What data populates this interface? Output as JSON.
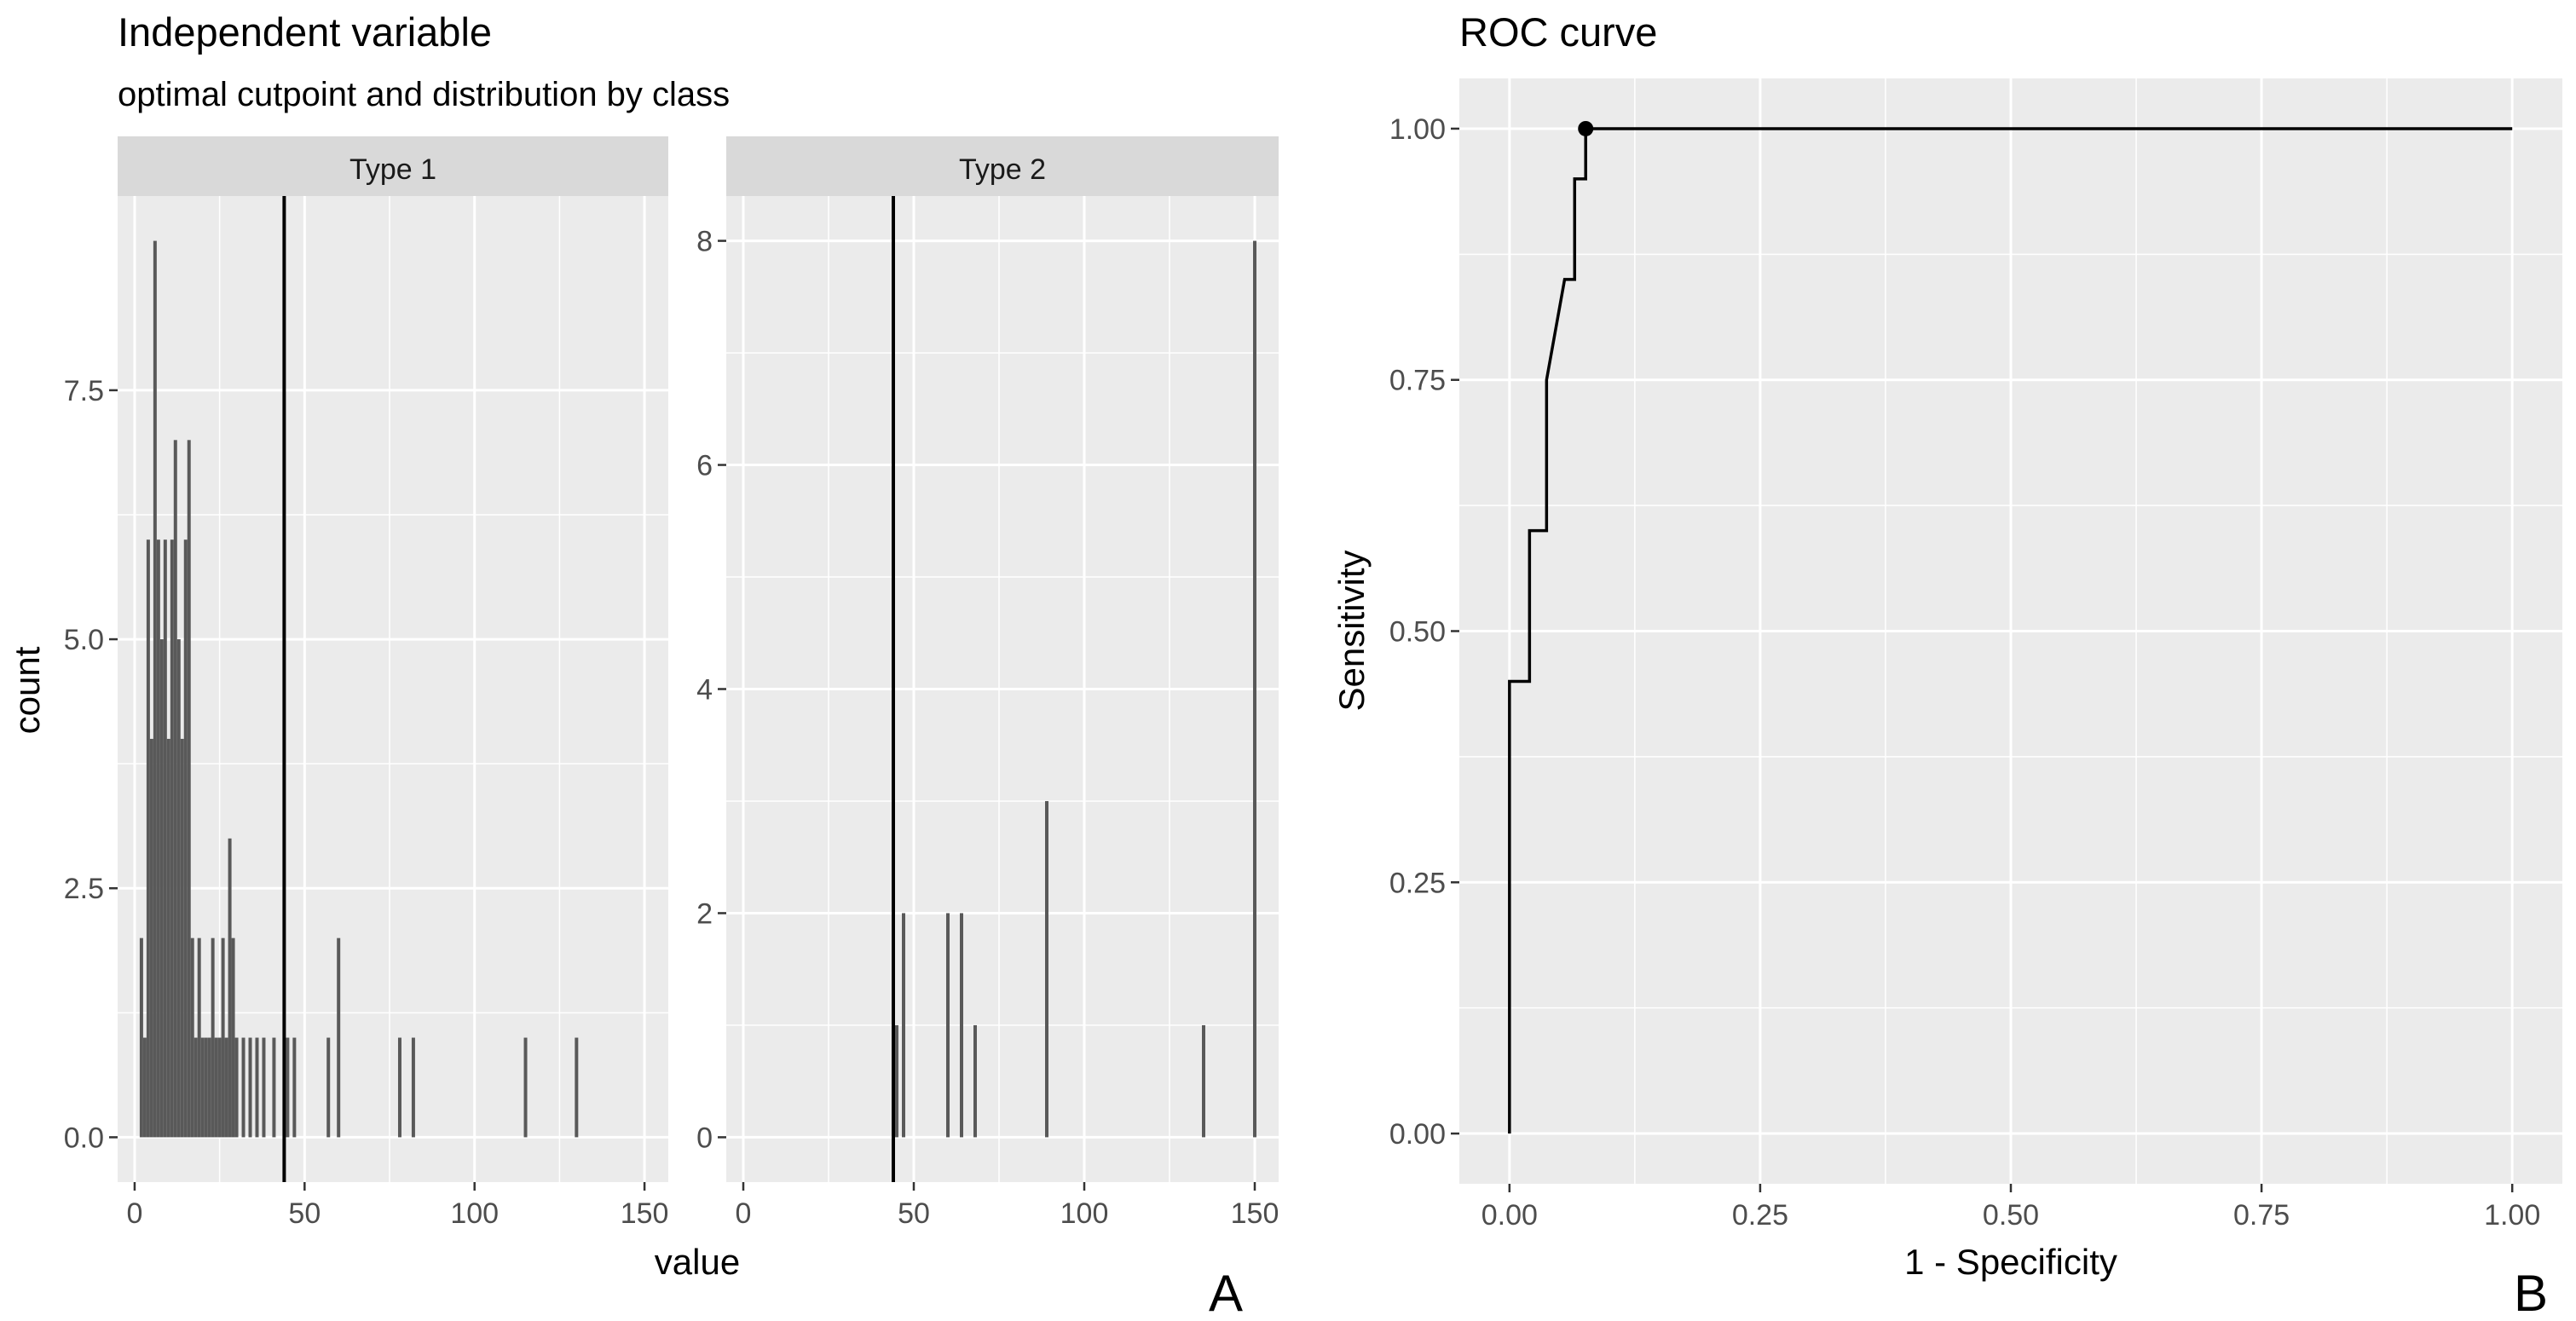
{
  "colors": {
    "panel_bg": "#ebebeb",
    "grid_major": "#ffffff",
    "strip_bg": "#d9d9d9",
    "bar_fill": "#595959",
    "line": "#000000",
    "text_dark": "#000000",
    "tick_text": "#4d4d4d"
  },
  "figure_letters": {
    "left": "A",
    "right": "B"
  },
  "chart_data": [
    {
      "type": "bar",
      "id": "histogram",
      "title": "Independent variable",
      "subtitle": "optimal cutpoint and distribution by class",
      "xlabel": "value",
      "ylabel": "count",
      "cutpoint": 44,
      "facets": [
        {
          "label": "Type 1",
          "xlim": [
            -5,
            157
          ],
          "ylim": [
            -0.45,
            9.45
          ],
          "xticks": [
            0,
            50,
            100,
            150
          ],
          "xtick_labels": [
            "0",
            "50",
            "100",
            "150"
          ],
          "yticks": [
            0,
            2.5,
            5,
            7.5
          ],
          "ytick_labels": [
            "0.0",
            "2.5",
            "5.0",
            "7.5"
          ],
          "bin_width": 1,
          "bars": [
            {
              "x": 2,
              "count": 2
            },
            {
              "x": 3,
              "count": 1
            },
            {
              "x": 4,
              "count": 6
            },
            {
              "x": 5,
              "count": 4
            },
            {
              "x": 6,
              "count": 9
            },
            {
              "x": 7,
              "count": 6
            },
            {
              "x": 8,
              "count": 5
            },
            {
              "x": 9,
              "count": 6
            },
            {
              "x": 10,
              "count": 4
            },
            {
              "x": 11,
              "count": 6
            },
            {
              "x": 12,
              "count": 7
            },
            {
              "x": 13,
              "count": 5
            },
            {
              "x": 14,
              "count": 4
            },
            {
              "x": 15,
              "count": 6
            },
            {
              "x": 16,
              "count": 7
            },
            {
              "x": 17,
              "count": 2
            },
            {
              "x": 18,
              "count": 1
            },
            {
              "x": 19,
              "count": 2
            },
            {
              "x": 20,
              "count": 1
            },
            {
              "x": 21,
              "count": 1
            },
            {
              "x": 22,
              "count": 1
            },
            {
              "x": 23,
              "count": 2
            },
            {
              "x": 24,
              "count": 1
            },
            {
              "x": 25,
              "count": 1
            },
            {
              "x": 26,
              "count": 2
            },
            {
              "x": 27,
              "count": 1
            },
            {
              "x": 28,
              "count": 3
            },
            {
              "x": 29,
              "count": 2
            },
            {
              "x": 30,
              "count": 1
            },
            {
              "x": 32,
              "count": 1
            },
            {
              "x": 34,
              "count": 1
            },
            {
              "x": 36,
              "count": 1
            },
            {
              "x": 38,
              "count": 1
            },
            {
              "x": 41,
              "count": 1
            },
            {
              "x": 45,
              "count": 1
            },
            {
              "x": 47,
              "count": 1
            },
            {
              "x": 57,
              "count": 1
            },
            {
              "x": 60,
              "count": 2
            },
            {
              "x": 78,
              "count": 1
            },
            {
              "x": 82,
              "count": 1
            },
            {
              "x": 115,
              "count": 1
            },
            {
              "x": 130,
              "count": 1
            }
          ]
        },
        {
          "label": "Type 2",
          "xlim": [
            -5,
            157
          ],
          "ylim": [
            -0.4,
            8.4
          ],
          "xticks": [
            0,
            50,
            100,
            150
          ],
          "xtick_labels": [
            "0",
            "50",
            "100",
            "150"
          ],
          "yticks": [
            0,
            2,
            4,
            6,
            8
          ],
          "ytick_labels": [
            "0",
            "2",
            "4",
            "6",
            "8"
          ],
          "bin_width": 1,
          "bars": [
            {
              "x": 45,
              "count": 1
            },
            {
              "x": 47,
              "count": 2
            },
            {
              "x": 60,
              "count": 2
            },
            {
              "x": 64,
              "count": 2
            },
            {
              "x": 68,
              "count": 1
            },
            {
              "x": 89,
              "count": 3
            },
            {
              "x": 135,
              "count": 1
            },
            {
              "x": 150,
              "count": 8
            }
          ]
        }
      ]
    },
    {
      "type": "line",
      "id": "roc",
      "title": "ROC curve",
      "xlabel": "1 - Specificity",
      "ylabel": "Sensitivity",
      "xlim": [
        -0.05,
        1.05
      ],
      "ylim": [
        -0.05,
        1.05
      ],
      "xticks": [
        0,
        0.25,
        0.5,
        0.75,
        1
      ],
      "xtick_labels": [
        "0.00",
        "0.25",
        "0.50",
        "0.75",
        "1.00"
      ],
      "yticks": [
        0,
        0.25,
        0.5,
        0.75,
        1
      ],
      "ytick_labels": [
        "0.00",
        "0.25",
        "0.50",
        "0.75",
        "1.00"
      ],
      "x": [
        0,
        0,
        0.02,
        0.02,
        0.037,
        0.037,
        0.055,
        0.065,
        0.065,
        0.076,
        0.076,
        1.0
      ],
      "y": [
        0,
        0.45,
        0.45,
        0.6,
        0.6,
        0.75,
        0.85,
        0.85,
        0.95,
        0.95,
        1.0,
        1.0
      ],
      "optimal_point": {
        "x": 0.076,
        "y": 1.0
      }
    }
  ]
}
